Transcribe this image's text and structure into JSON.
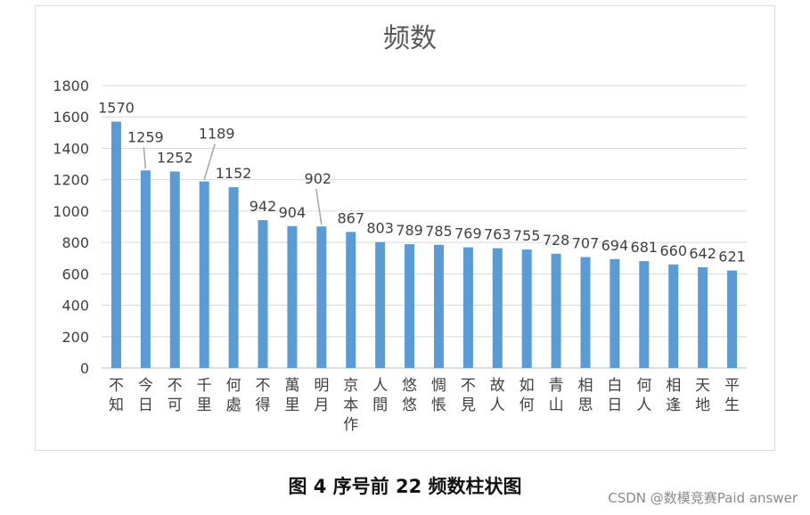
{
  "chart_data": {
    "type": "bar",
    "title": "频数",
    "categories": [
      "不知",
      "今日",
      "不可",
      "千里",
      "何處",
      "不得",
      "萬里",
      "明月",
      "京本作",
      "人間",
      "悠悠",
      "惆悵",
      "不見",
      "故人",
      "如何",
      "青山",
      "相思",
      "白日",
      "何人",
      "相逢",
      "天地",
      "平生"
    ],
    "values": [
      1570,
      1259,
      1252,
      1189,
      1152,
      942,
      904,
      902,
      867,
      803,
      789,
      785,
      769,
      763,
      755,
      728,
      707,
      694,
      681,
      660,
      642,
      621
    ],
    "value_labels": [
      "1570",
      "1259",
      "1252",
      "1189",
      "1152",
      "942",
      "904",
      "902",
      "867",
      "803",
      "789",
      "785",
      "769",
      "763",
      "755",
      "728",
      "707",
      "694",
      "681",
      "660",
      "642",
      "621"
    ],
    "yticks": [
      "0",
      "200",
      "400",
      "600",
      "800",
      "1000",
      "1200",
      "1400",
      "1600",
      "1800"
    ],
    "ylim": [
      0,
      1800
    ],
    "grid": true,
    "bar_color": "#5b9bd5",
    "xlabel": "",
    "ylabel": ""
  },
  "caption": "图 4 序号前 22 频数柱状图",
  "watermark": "CSDN @数模竞赛Paid answer"
}
